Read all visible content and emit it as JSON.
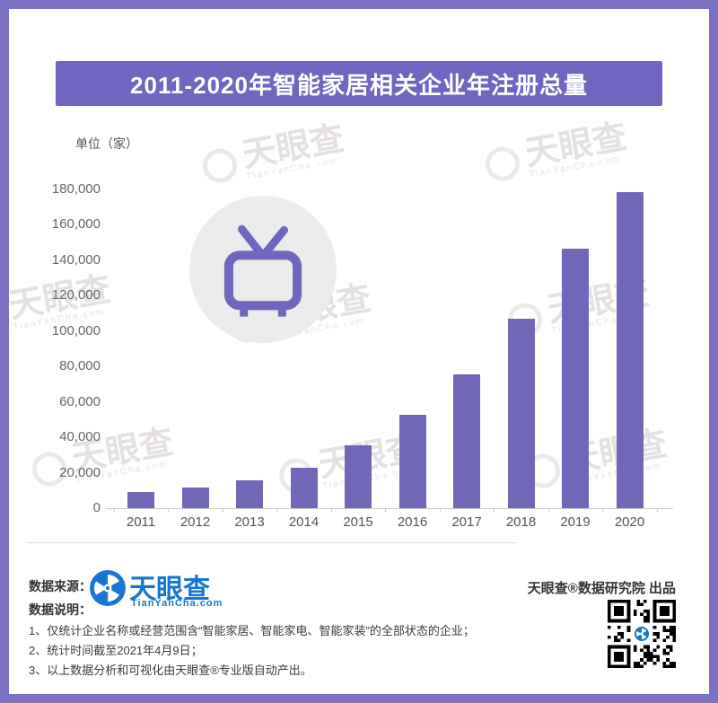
{
  "header": {
    "title": "2011-2020年智能家居相关企业年注册总量",
    "banner_color": "#6F66C1"
  },
  "chart": {
    "unit_label": "单位（家）"
  },
  "chart_data": {
    "type": "bar",
    "categories": [
      "2011",
      "2012",
      "2013",
      "2014",
      "2015",
      "2016",
      "2017",
      "2018",
      "2019",
      "2020"
    ],
    "values": [
      9000,
      11500,
      15500,
      23000,
      35500,
      52500,
      75500,
      107000,
      146500,
      178500
    ],
    "title": "2011-2020年智能家居相关企业年注册总量",
    "xlabel": "",
    "ylabel": "单位（家）",
    "ylim": [
      0,
      180000
    ],
    "ytick_interval": 20000,
    "bar_color": "#7067B8",
    "grid": false,
    "legend": false
  },
  "colors": {
    "frame_purple": "#7B72C3",
    "banner_purple": "#6F66C1",
    "bar_purple": "#7067B8",
    "tv_icon_purple": "#6F66C0",
    "icon_circle_gray": "#ECECEC",
    "logo_blue": "#1677D2"
  },
  "watermark": {
    "text": "天眼查",
    "subtext": "TianYanCha.com"
  },
  "icons": {
    "tv_icon": "tv-with-antenna",
    "logo_icon": "aperture-eye"
  },
  "footer": {
    "source_label": "数据来源：",
    "logo_name": "天眼查",
    "logo_domain": "TianYanCha.com",
    "producer": "天眼查®数据研究院 出品",
    "notes_label": "数据说明：",
    "notes": [
      "1、仅统计企业名称或经营范围含“智能家居、智能家电、智能家装”的全部状态的企业；",
      "2、统计时间截至2021年4月9日；",
      "3、以上数据分析和可视化由天眼查®专业版自动产出。"
    ]
  }
}
